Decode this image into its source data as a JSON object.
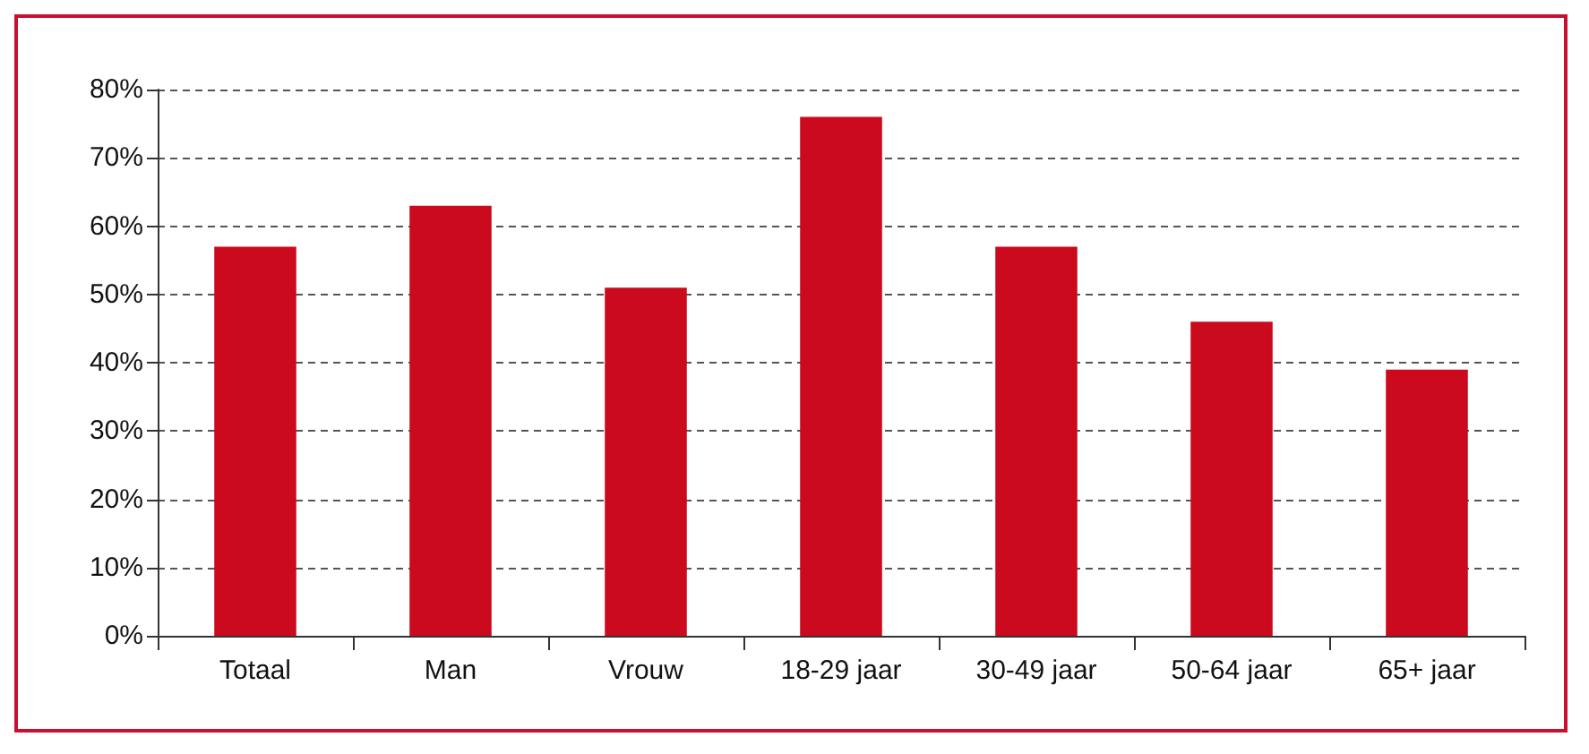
{
  "chart_data": {
    "type": "bar",
    "categories": [
      "Totaal",
      "Man",
      "Vrouw",
      "18-29 jaar",
      "30-49 jaar",
      "50-64 jaar",
      "65+ jaar"
    ],
    "values": [
      57,
      63,
      51,
      76,
      57,
      46,
      39
    ],
    "color": "#cc0a1e",
    "ylim": [
      0,
      80
    ],
    "yticks": [
      {
        "value": 0,
        "label": "0%"
      },
      {
        "value": 10,
        "label": "10%"
      },
      {
        "value": 20,
        "label": "20%"
      },
      {
        "value": 30,
        "label": "30%"
      },
      {
        "value": 40,
        "label": "40%"
      },
      {
        "value": 50,
        "label": "50%"
      },
      {
        "value": 60,
        "label": "60%"
      },
      {
        "value": 70,
        "label": "70%"
      },
      {
        "value": 80,
        "label": "80%"
      }
    ],
    "grid": "y"
  }
}
